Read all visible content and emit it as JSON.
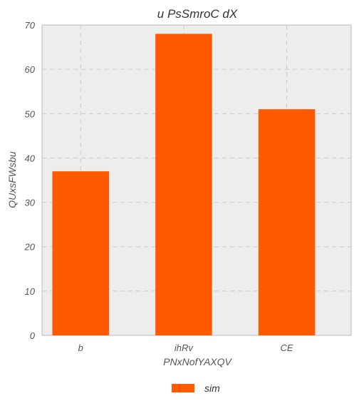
{
  "chart_data": {
    "type": "bar",
    "title": "u PsSmroC  dX",
    "xlabel": "PNxNofYAXQV",
    "ylabel": "QUxsFWsbu",
    "categories": [
      "b",
      "ihRv",
      "CE"
    ],
    "series": [
      {
        "name": "sim",
        "values": [
          37,
          68,
          51
        ],
        "color": "#ff5a00"
      }
    ],
    "ylim": [
      0,
      70
    ],
    "yticks": [
      0,
      10,
      20,
      30,
      40,
      50,
      60,
      70
    ],
    "grid": true,
    "legend_position": "bottom-center",
    "background": "#ededed",
    "grid_color": "#cccccc"
  }
}
